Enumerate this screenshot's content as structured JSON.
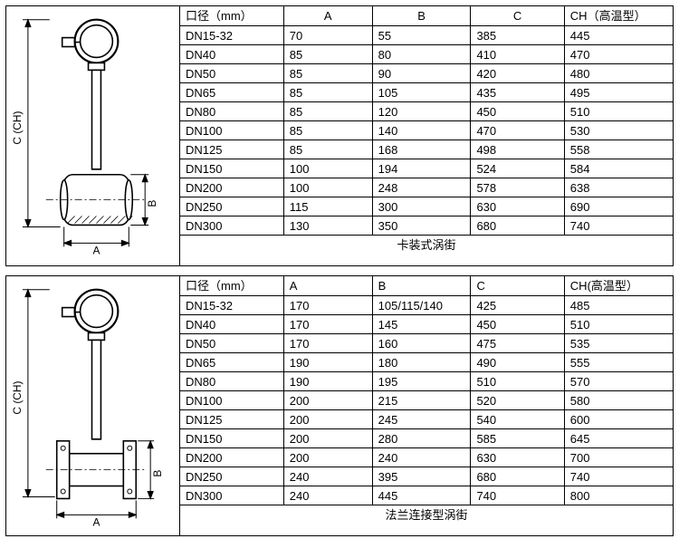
{
  "colors": {
    "stroke": "#000000",
    "bg": "#ffffff",
    "text": "#000000",
    "hatch": "#000000"
  },
  "diagram_labels": {
    "c_label": "C (CH)",
    "a_label": "A",
    "b_label": "B"
  },
  "tables": [
    {
      "type": "table",
      "diagram": "wafer",
      "caption": "卡装式涡街",
      "headers": {
        "dia": "口径（mm）",
        "a": "A",
        "b": "B",
        "c": "C",
        "ch": "CH（高温型）"
      },
      "header_align": {
        "a": "center",
        "b": "center",
        "c": "center"
      },
      "rows": [
        {
          "dia": "DN15-32",
          "a": "70",
          "b": "55",
          "c": "385",
          "ch": "445"
        },
        {
          "dia": "DN40",
          "a": "85",
          "b": "80",
          "c": "410",
          "ch": "470"
        },
        {
          "dia": "DN50",
          "a": "85",
          "b": "90",
          "c": "420",
          "ch": "480"
        },
        {
          "dia": "DN65",
          "a": "85",
          "b": "105",
          "c": "435",
          "ch": "495"
        },
        {
          "dia": "DN80",
          "a": "85",
          "b": "120",
          "c": "450",
          "ch": "510"
        },
        {
          "dia": "DN100",
          "a": "85",
          "b": "140",
          "c": "470",
          "ch": "530"
        },
        {
          "dia": "DN125",
          "a": "85",
          "b": "168",
          "c": "498",
          "ch": "558"
        },
        {
          "dia": "DN150",
          "a": "100",
          "b": "194",
          "c": "524",
          "ch": "584"
        },
        {
          "dia": "DN200",
          "a": "100",
          "b": "248",
          "c": "578",
          "ch": "638"
        },
        {
          "dia": "DN250",
          "a": "115",
          "b": "300",
          "c": "630",
          "ch": "690"
        },
        {
          "dia": "DN300",
          "a": "130",
          "b": "350",
          "c": "680",
          "ch": "740"
        }
      ]
    },
    {
      "type": "table",
      "diagram": "flange",
      "caption": "法兰连接型涡街",
      "headers": {
        "dia": "口径（mm）",
        "a": "A",
        "b": "B",
        "c": "C",
        "ch": "CH(高温型）"
      },
      "header_align": {},
      "rows": [
        {
          "dia": "DN15-32",
          "a": "170",
          "b": "105/115/140",
          "c": "425",
          "ch": "485"
        },
        {
          "dia": "DN40",
          "a": "170",
          "b": "145",
          "c": "450",
          "ch": "510"
        },
        {
          "dia": "DN50",
          "a": "170",
          "b": "160",
          "c": "475",
          "ch": "535"
        },
        {
          "dia": "DN65",
          "a": "190",
          "b": "180",
          "c": "490",
          "ch": "555"
        },
        {
          "dia": "DN80",
          "a": "190",
          "b": "195",
          "c": "510",
          "ch": "570"
        },
        {
          "dia": "DN100",
          "a": "200",
          "b": "215",
          "c": "520",
          "ch": "580"
        },
        {
          "dia": "DN125",
          "a": "200",
          "b": "245",
          "c": "540",
          "ch": "600"
        },
        {
          "dia": "DN150",
          "a": "200",
          "b": "280",
          "c": "585",
          "ch": "645"
        },
        {
          "dia": "DN200",
          "a": "200",
          "b": "240",
          "c": "630",
          "ch": "700"
        },
        {
          "dia": "DN250",
          "a": "240",
          "b": "395",
          "c": "680",
          "ch": "740"
        },
        {
          "dia": "DN300",
          "a": "240",
          "b": "445",
          "c": "740",
          "ch": "800"
        }
      ]
    }
  ]
}
